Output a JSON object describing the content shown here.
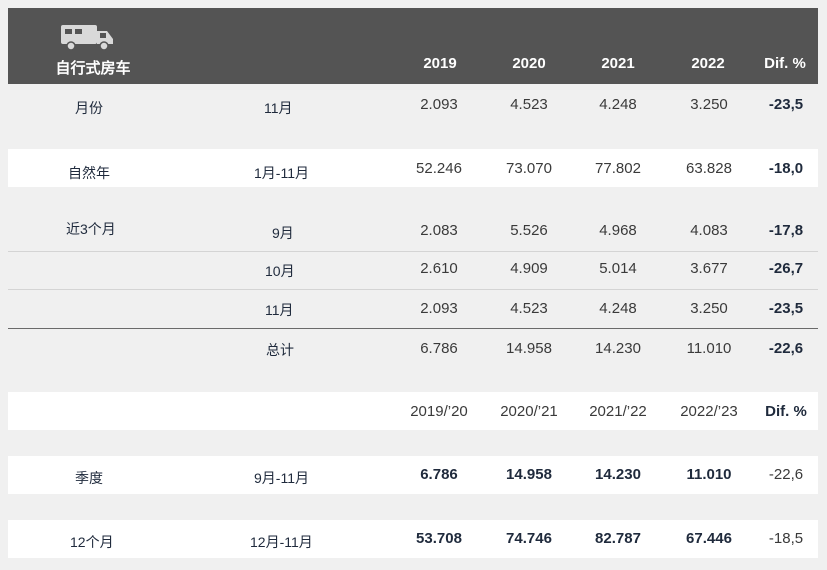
{
  "header": {
    "title": "自行式房车",
    "columns": [
      "2019",
      "2020",
      "2021",
      "2022",
      "Dif. %"
    ],
    "icon": "motorhome-icon"
  },
  "rows": {
    "month": {
      "label": "月份",
      "period": "11月",
      "values": [
        "2.093",
        "4.523",
        "4.248",
        "3.250",
        "-23,5"
      ]
    },
    "calendar_year": {
      "label": "自然年",
      "period": "1月-11月",
      "values": [
        "52.246",
        "73.070",
        "77.802",
        "63.828",
        "-18,0"
      ]
    },
    "last3": {
      "label": "近3个月",
      "items": [
        {
          "period": "9月",
          "values": [
            "2.083",
            "5.526",
            "4.968",
            "4.083",
            "-17,8"
          ]
        },
        {
          "period": "10月",
          "values": [
            "2.610",
            "4.909",
            "5.014",
            "3.677",
            "-26,7"
          ]
        },
        {
          "period": "11月",
          "values": [
            "2.093",
            "4.523",
            "4.248",
            "3.250",
            "-23,5"
          ]
        }
      ],
      "total": {
        "period": "总计",
        "values": [
          "6.786",
          "14.958",
          "14.230",
          "11.010",
          "-22,6"
        ]
      }
    },
    "season_header": [
      "2019/’20",
      "2020/’21",
      "2021/’22",
      "2022/’23",
      "Dif. %"
    ],
    "season": {
      "label": "季度",
      "period": "9月-11月",
      "values": [
        "6.786",
        "14.958",
        "14.230",
        "11.010",
        "-22,6"
      ]
    },
    "twelve_months": {
      "label": "12个月",
      "period": "12月-11月",
      "values": [
        "53.708",
        "74.746",
        "82.787",
        "67.446",
        "-18,5"
      ]
    }
  }
}
